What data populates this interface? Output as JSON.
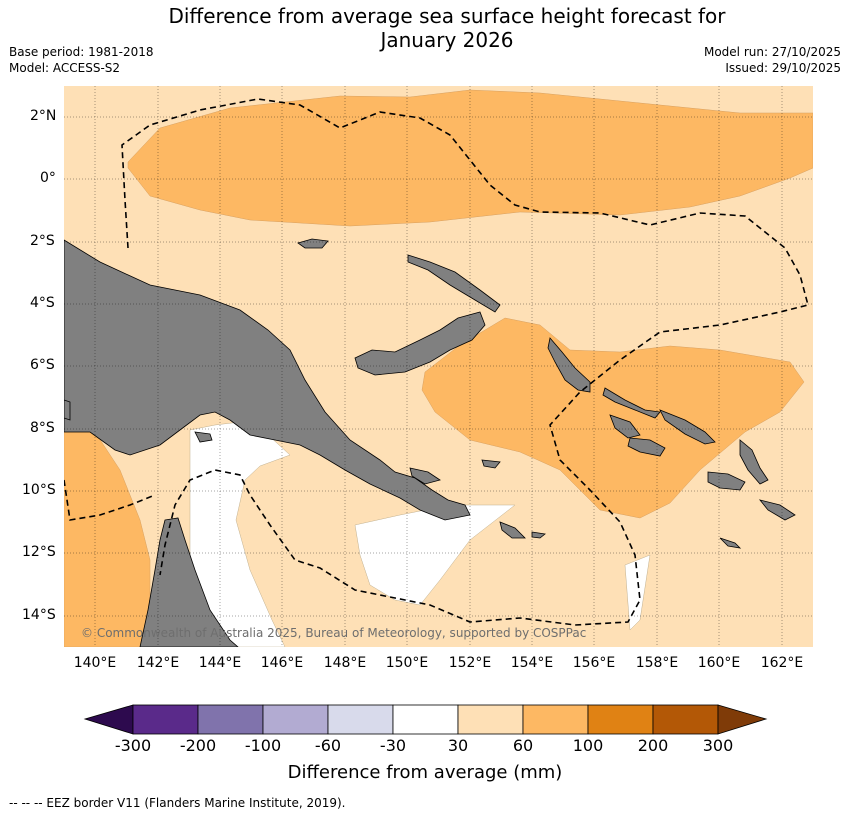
{
  "title_line1": "Difference from average sea surface height forecast for",
  "title_line2": "January 2026",
  "meta_left": [
    "Base period: 1981-2018",
    "Model: ACCESS-S2"
  ],
  "meta_right": [
    "Model run: 27/10/2025",
    "Issued: 29/10/2025"
  ],
  "lat_labels": [
    "2°N",
    "0°",
    "2°S",
    "4°S",
    "6°S",
    "8°S",
    "10°S",
    "12°S",
    "14°S"
  ],
  "lon_labels": [
    "140°E",
    "142°E",
    "144°E",
    "146°E",
    "148°E",
    "150°E",
    "152°E",
    "154°E",
    "156°E",
    "158°E",
    "160°E",
    "162°E"
  ],
  "copyright": "© Commonwealth of Australia 2025, Bureau of Meteorology, supported by COSPPac",
  "colorbar": {
    "ticks": [
      "-300",
      "-200",
      "-100",
      "-60",
      "-30",
      "30",
      "60",
      "100",
      "200",
      "300"
    ],
    "title": "Difference from average (mm)",
    "colors": {
      "below_min": "#2d0a4e",
      "n300_n200": "#5a2a8a",
      "n200_n100": "#8073ac",
      "n100_n60": "#b2abd2",
      "n60_n30": "#d8daeb",
      "n30_30": "#ffffff",
      "p30_60": "#fee0b6",
      "p60_100": "#fdb863",
      "p100_200": "#e08214",
      "p200_300": "#b35806",
      "above_max": "#7f3b08"
    }
  },
  "footnote": "--  --  -- EEZ border V11 (Flanders Marine Institute, 2019).",
  "map": {
    "lon_range": [
      139,
      163
    ],
    "lat_range": [
      -15,
      3
    ],
    "land_color": "#808080",
    "eez_style": "dashed"
  }
}
